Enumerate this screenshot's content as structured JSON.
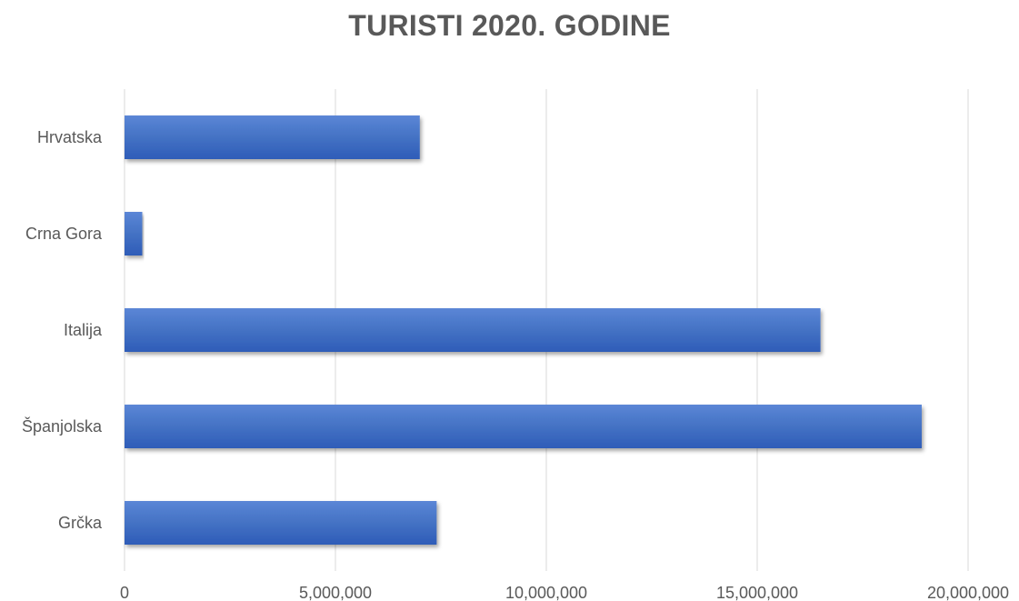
{
  "chart_data": {
    "type": "bar",
    "orientation": "horizontal",
    "title": "TURISTI 2020. GODINE",
    "categories": [
      "Hrvatska",
      "Crna Gora",
      "Italija",
      "Španjolska",
      "Grčka"
    ],
    "values": [
      7000000,
      420000,
      16500000,
      18900000,
      7400000
    ],
    "xlim": [
      0,
      20000000
    ],
    "x_ticks": [
      0,
      5000000,
      10000000,
      15000000,
      20000000
    ],
    "x_tick_labels": [
      "0",
      "5,000,000",
      "10,000,000",
      "15,000,000",
      "20,000,000"
    ],
    "xlabel": "",
    "ylabel": "",
    "grid": "vertical",
    "legend": "none",
    "bar_color": "#4472C4"
  }
}
